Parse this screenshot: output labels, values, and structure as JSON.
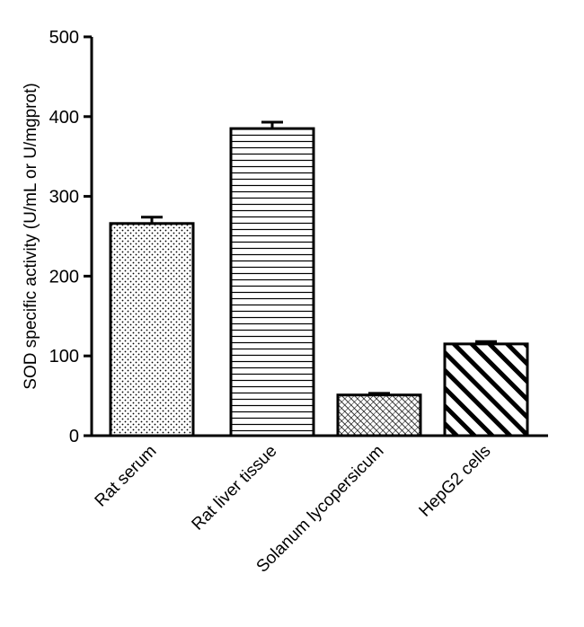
{
  "chart_data": {
    "type": "bar",
    "title": "",
    "xlabel": "",
    "ylabel": "SOD specific activity (U/mL or U/mgprot)",
    "categories": [
      "Rat serum",
      "Rat liver tissue",
      "Solanum lycopersicum",
      "HepG2 cells"
    ],
    "values": [
      266,
      385,
      51,
      115
    ],
    "errors": [
      8,
      8,
      2,
      3
    ],
    "patterns": [
      "dots",
      "horizontal-lines",
      "crosshatch",
      "diagonal-stripes"
    ],
    "ylim": [
      0,
      500
    ],
    "yticks": [
      0,
      100,
      200,
      300,
      400,
      500
    ],
    "grid": false,
    "legend": "none"
  },
  "colors": {
    "stroke": "#000000",
    "fill": "#ffffff"
  }
}
